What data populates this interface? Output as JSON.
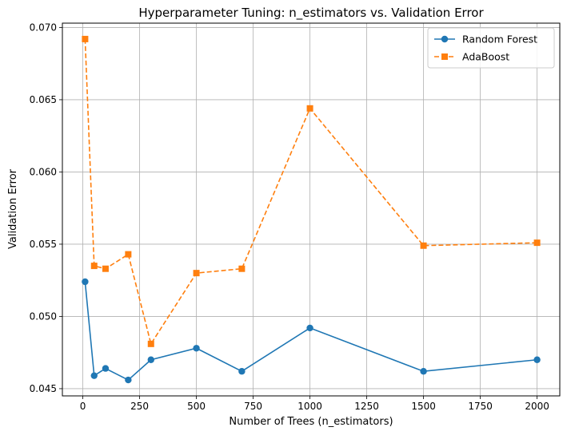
{
  "chart_data": {
    "type": "line",
    "title": "Hyperparameter Tuning: n_estimators vs. Validation Error",
    "xlabel": "Number of Trees (n_estimators)",
    "ylabel": "Validation Error",
    "x": [
      10,
      50,
      100,
      200,
      300,
      500,
      700,
      1000,
      1500,
      2000
    ],
    "xlim": [
      -90,
      2100
    ],
    "ylim": [
      0.0445,
      0.0703
    ],
    "xticks": [
      0,
      250,
      500,
      750,
      1000,
      1250,
      1500,
      1750,
      2000
    ],
    "xtick_labels": [
      "0",
      "250",
      "500",
      "750",
      "1000",
      "1250",
      "1500",
      "1750",
      "2000"
    ],
    "yticks": [
      0.045,
      0.05,
      0.055,
      0.06,
      0.065,
      0.07
    ],
    "ytick_labels": [
      "0.045",
      "0.050",
      "0.055",
      "0.060",
      "0.065",
      "0.070"
    ],
    "grid": true,
    "legend_position": "top-right",
    "series": [
      {
        "name": "Random Forest",
        "color": "#1f77b4",
        "marker": "circle",
        "linestyle": "solid",
        "values": [
          0.0524,
          0.0459,
          0.0464,
          0.0456,
          0.047,
          0.0478,
          0.0462,
          0.0492,
          0.0462,
          0.047
        ]
      },
      {
        "name": "AdaBoost",
        "color": "#ff7f0e",
        "marker": "square",
        "linestyle": "dashed",
        "values": [
          0.0692,
          0.0535,
          0.0533,
          0.0543,
          0.0481,
          0.053,
          0.0533,
          0.0644,
          0.0549,
          0.0551
        ]
      }
    ]
  }
}
